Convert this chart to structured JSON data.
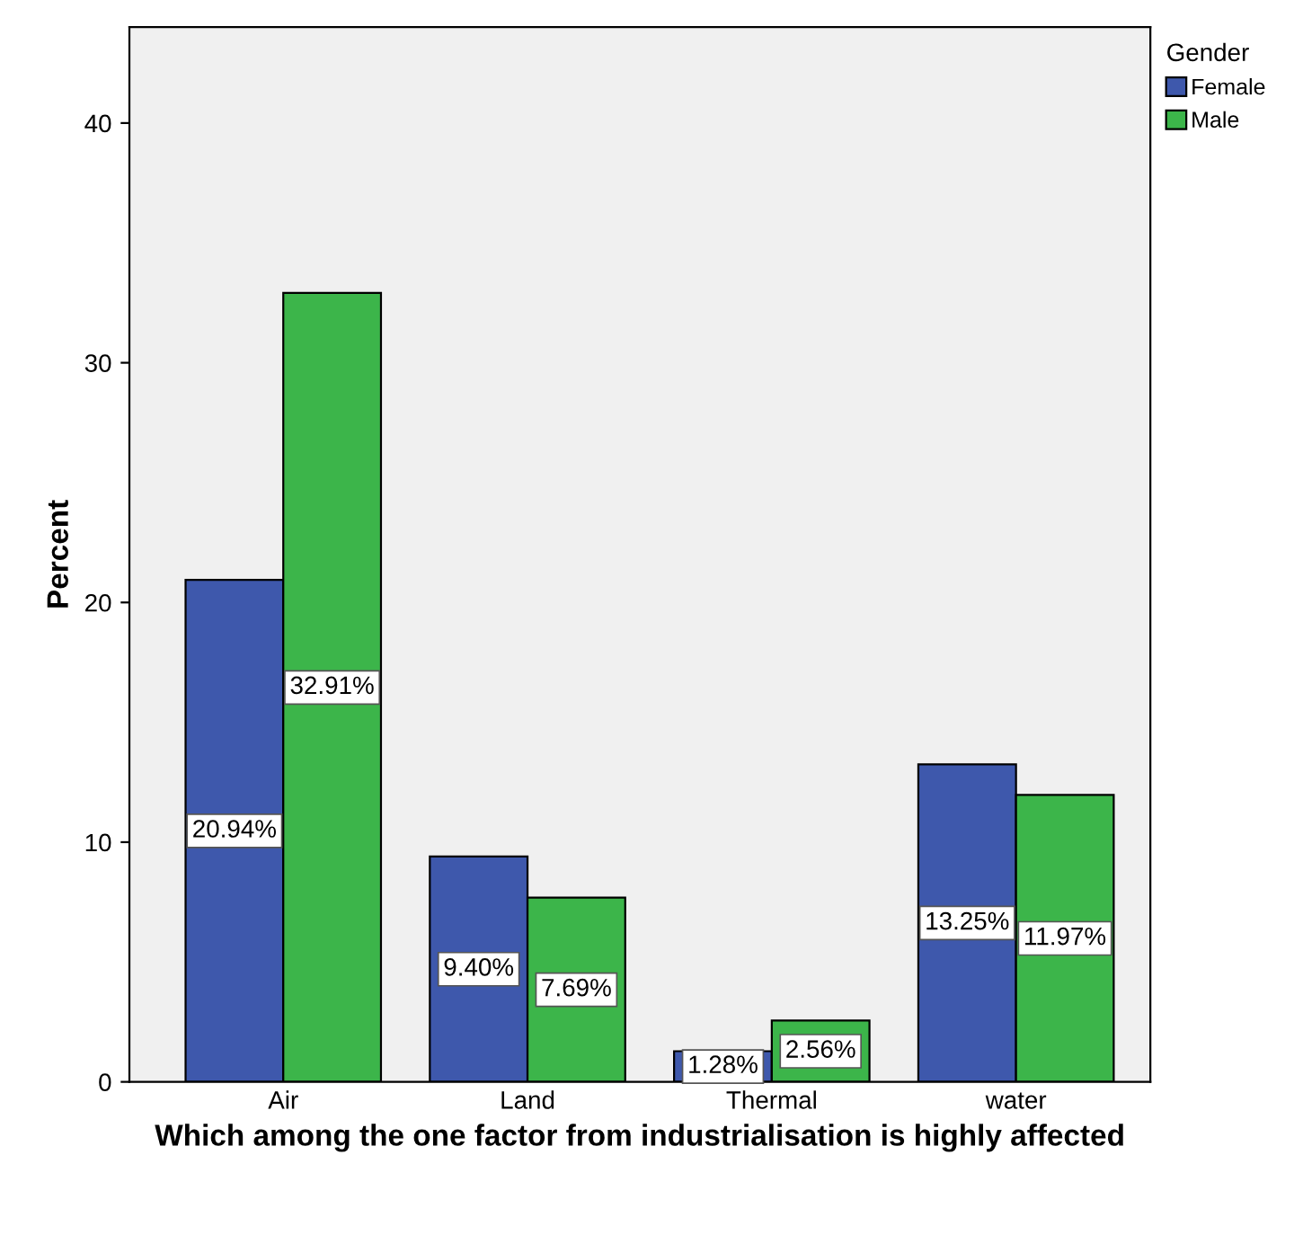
{
  "chart_data": {
    "type": "bar",
    "xlabel": "Which among the one factor from industrialisation is highly affected",
    "ylabel": "Percent",
    "legend_title": "Gender",
    "categories": [
      "Air",
      "Land",
      "Thermal",
      "water"
    ],
    "series": [
      {
        "name": "Female",
        "color": "#3e58ac",
        "values": [
          20.94,
          9.4,
          1.28,
          13.25
        ],
        "value_labels": [
          "20.94%",
          "9.40%",
          "1.28%",
          "13.25%"
        ]
      },
      {
        "name": "Male",
        "color": "#3cb54a",
        "values": [
          32.91,
          7.69,
          2.56,
          11.97
        ],
        "value_labels": [
          "32.91%",
          "7.69%",
          "2.56%",
          "11.97%"
        ]
      }
    ],
    "ylim": [
      0,
      44
    ],
    "yticks": [
      0,
      10,
      20,
      30,
      40
    ],
    "grid": false,
    "legend": "top right"
  }
}
